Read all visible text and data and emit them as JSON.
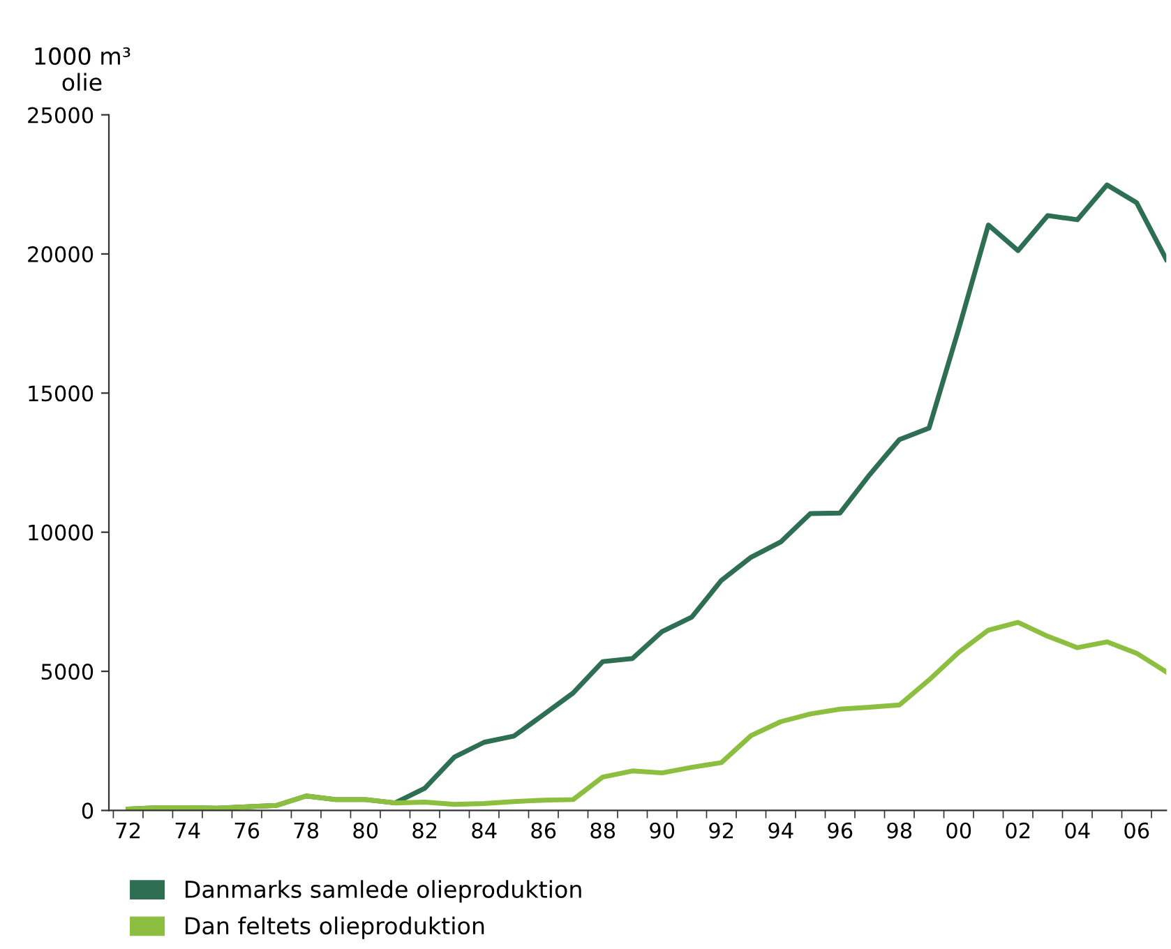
{
  "chart_data": {
    "type": "line",
    "ylabel": "1000 m³\nolie",
    "categories": [
      "72",
      null,
      "74",
      null,
      "76",
      null,
      "78",
      null,
      "80",
      null,
      "82",
      null,
      "84",
      null,
      "86",
      null,
      "88",
      null,
      "90",
      null,
      "92",
      null,
      "94",
      null,
      "96",
      null,
      "98",
      null,
      "00",
      null,
      "02",
      null,
      "04",
      null,
      "06",
      null
    ],
    "series": [
      {
        "name": "Danmarks samlede olieproduktion",
        "color": "#2e6e52",
        "values": [
          50,
          100,
          100,
          80,
          130,
          180,
          520,
          390,
          390,
          270,
          800,
          1920,
          2450,
          2670,
          3440,
          4220,
          5350,
          5460,
          6430,
          6950,
          8270,
          9100,
          9650,
          10670,
          10690,
          12070,
          13330,
          13740,
          17300,
          21040,
          20120,
          21380,
          21230,
          22480,
          21840,
          19800
        ]
      },
      {
        "name": "Dan feltets olieproduktion",
        "color": "#8cbf3f",
        "values": [
          50,
          100,
          100,
          80,
          130,
          180,
          520,
          390,
          390,
          270,
          300,
          220,
          250,
          320,
          370,
          390,
          1200,
          1420,
          1350,
          1550,
          1720,
          2690,
          3190,
          3470,
          3640,
          3710,
          3790,
          4690,
          5680,
          6480,
          6760,
          6260,
          5850,
          6060,
          5650,
          4980
        ]
      }
    ],
    "ylim": [
      0,
      25000
    ],
    "yticks": [
      0,
      5000,
      10000,
      15000,
      20000,
      25000
    ],
    "grid": false,
    "legend": "bottom left",
    "marker": "none",
    "line_style": "solid"
  }
}
